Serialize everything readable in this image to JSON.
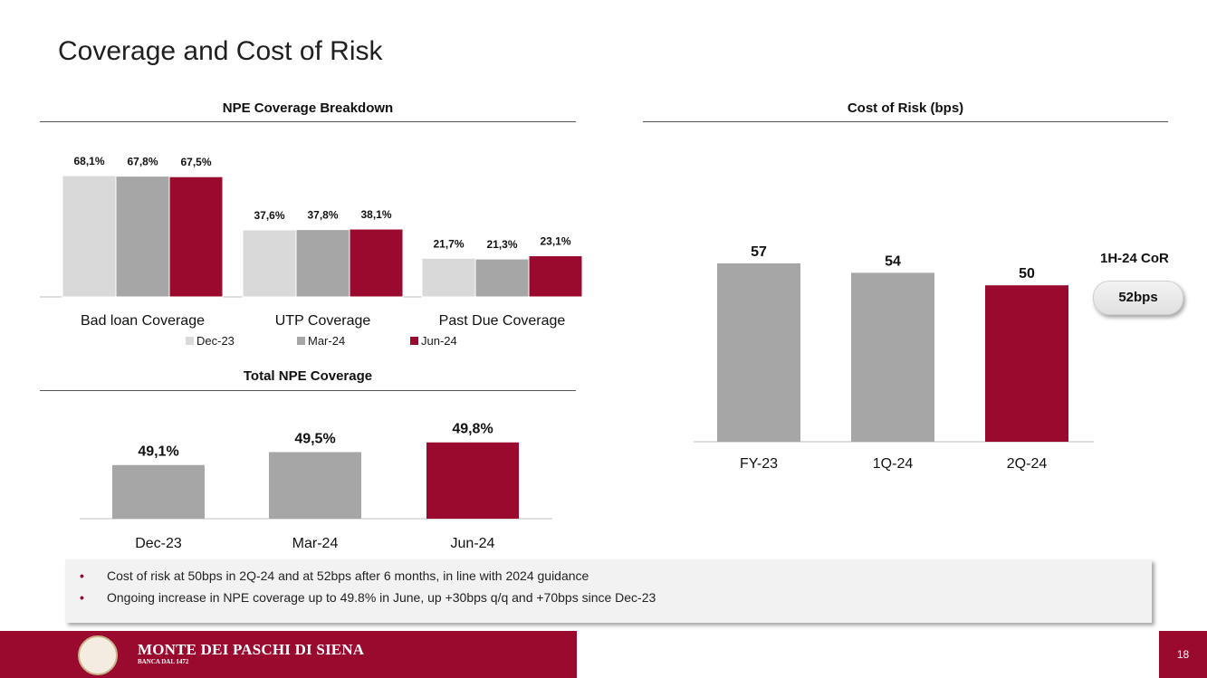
{
  "page": {
    "title": "Coverage and Cost of Risk",
    "page_number": "18",
    "brand": {
      "name": "MONTE DEI PASCHI DI SIENA",
      "subtitle": "BANCA DAL 1472",
      "logo": "bank-seal-logo"
    }
  },
  "colors": {
    "dec23": "#d9d9d9",
    "mar24": "#a6a6a6",
    "jun24": "#9a0a2e",
    "accent": "#9a0a2e"
  },
  "chart_data": [
    {
      "id": "npe-breakdown",
      "type": "bar",
      "title": "NPE Coverage Breakdown",
      "categories": [
        "Bad loan Coverage",
        "UTP Coverage",
        "Past Due Coverage"
      ],
      "series": [
        {
          "name": "Dec-23",
          "values": [
            68.1,
            37.6,
            21.7
          ],
          "labels": [
            "68,1%",
            "37,6%",
            "21,7%"
          ]
        },
        {
          "name": "Mar-24",
          "values": [
            67.8,
            37.8,
            21.3
          ],
          "labels": [
            "67,8%",
            "37,8%",
            "21,3%"
          ]
        },
        {
          "name": "Jun-24",
          "values": [
            67.5,
            38.1,
            23.1
          ],
          "labels": [
            "67,5%",
            "38,1%",
            "23,1%"
          ]
        }
      ],
      "ylim": [
        0,
        70
      ]
    },
    {
      "id": "total-npe",
      "type": "bar",
      "title": "Total NPE Coverage",
      "categories": [
        "Dec-23",
        "Mar-24",
        "Jun-24"
      ],
      "values": [
        49.1,
        49.5,
        49.8
      ],
      "labels": [
        "49,1%",
        "49,5%",
        "49,8%"
      ],
      "ylim": [
        48.0,
        50.0
      ]
    },
    {
      "id": "cost-of-risk",
      "type": "bar",
      "title": "Cost of Risk (bps)",
      "categories": [
        "FY-23",
        "1Q-24",
        "2Q-24"
      ],
      "values": [
        57,
        54,
        50
      ],
      "labels": [
        "57",
        "54",
        "50"
      ],
      "ylim": [
        0,
        60
      ],
      "annotation": {
        "label": "1H-24 CoR",
        "value": "52bps"
      }
    }
  ],
  "bullets": [
    "Cost of risk at 50bps in 2Q-24 and at 52bps after 6 months, in line with 2024 guidance",
    "Ongoing increase in NPE coverage up to 49.8% in June, up +30bps q/q and +70bps since Dec-23"
  ],
  "bullet_marker": "•"
}
